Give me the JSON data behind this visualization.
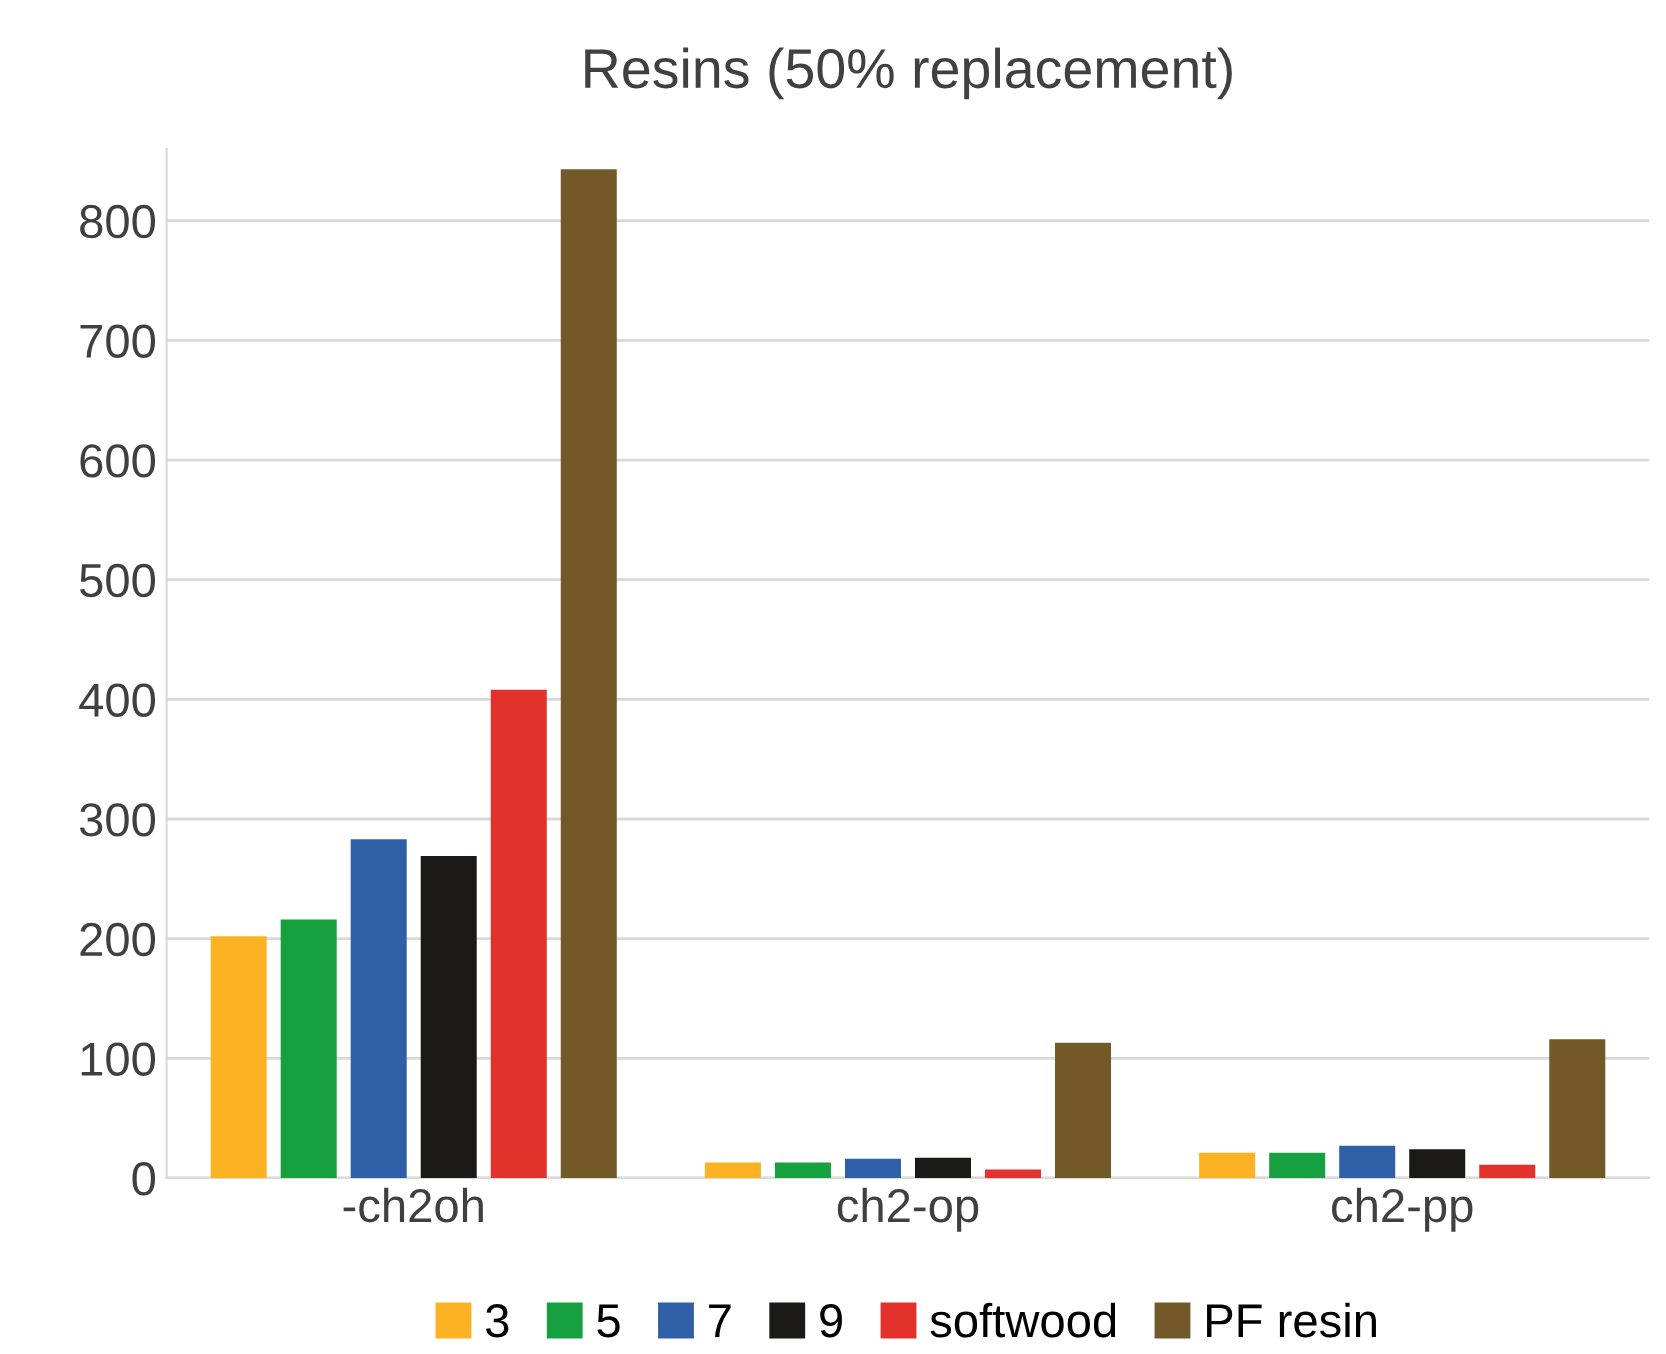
{
  "chart_data": {
    "type": "bar",
    "title": "Resins (50% replacement)",
    "categories": [
      "-ch2oh",
      "ch2-op",
      "ch2-pp"
    ],
    "series": [
      {
        "name": "3",
        "color": "#fbb324",
        "values": [
          202,
          13,
          21
        ]
      },
      {
        "name": "5",
        "color": "#16a03f",
        "values": [
          216,
          13,
          21
        ]
      },
      {
        "name": "7",
        "color": "#2f5fa6",
        "values": [
          283,
          16,
          27
        ]
      },
      {
        "name": "9",
        "color": "#1b1a17",
        "values": [
          269,
          17,
          24
        ]
      },
      {
        "name": "softwood",
        "color": "#e3312c",
        "values": [
          408,
          7,
          11
        ]
      },
      {
        "name": "PF resin",
        "color": "#735828",
        "values": [
          843,
          113,
          116
        ]
      }
    ],
    "ylim": [
      0,
      860
    ],
    "yticks": [
      0,
      100,
      200,
      300,
      400,
      500,
      600,
      700,
      800
    ],
    "grid": "y",
    "legend": "bottom"
  }
}
